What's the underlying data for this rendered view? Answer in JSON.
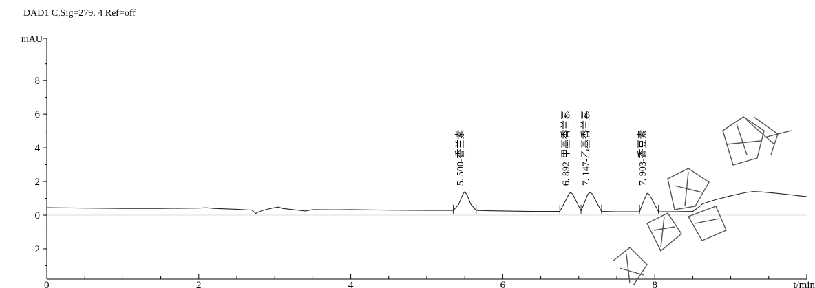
{
  "header": {
    "signal_title": "DAD1 C,Sig=279. 4 Ref=off"
  },
  "chart_data": {
    "type": "line",
    "ylabel": "mAU",
    "xlabel": "t/min",
    "xlim": [
      0,
      10
    ],
    "ylim": [
      -3.8,
      10.5
    ],
    "x_ticks": [
      "0",
      "2",
      "4",
      "6",
      "8",
      "10"
    ],
    "y_ticks": [
      "-2",
      "0",
      "2",
      "4",
      "6",
      "8"
    ],
    "x_tick_values": [
      0,
      2,
      4,
      6,
      8,
      10
    ],
    "y_tick_values": [
      -2,
      0,
      2,
      4,
      6,
      8
    ],
    "grid": false,
    "series": [
      {
        "x": [
          0,
          0.5,
          1.0,
          1.5,
          2.0,
          2.1,
          2.2,
          2.5,
          2.7,
          2.75,
          2.8,
          2.9,
          3.0,
          3.05,
          3.1,
          3.3,
          3.4,
          3.5,
          3.8,
          4.0,
          4.5,
          5.0,
          5.35,
          5.42,
          5.47,
          5.5,
          5.53,
          5.58,
          5.65,
          5.8,
          6.0,
          6.4,
          6.75,
          6.82,
          6.87,
          6.89,
          6.92,
          6.97,
          7.03,
          7.08,
          7.12,
          7.15,
          7.18,
          7.23,
          7.3,
          7.5,
          7.8,
          7.85,
          7.89,
          7.9,
          7.93,
          7.98,
          8.05,
          8.2,
          8.5,
          8.6,
          8.62,
          8.7,
          8.8,
          9.0,
          9.2,
          9.3,
          9.4,
          9.6,
          9.8,
          10.0
        ],
        "y": [
          0.45,
          0.42,
          0.4,
          0.4,
          0.42,
          0.44,
          0.4,
          0.35,
          0.3,
          0.1,
          0.22,
          0.35,
          0.45,
          0.48,
          0.4,
          0.3,
          0.25,
          0.33,
          0.32,
          0.33,
          0.3,
          0.28,
          0.28,
          0.65,
          1.2,
          1.4,
          1.2,
          0.65,
          0.28,
          0.26,
          0.25,
          0.22,
          0.22,
          0.8,
          1.25,
          1.35,
          1.25,
          0.8,
          0.25,
          0.8,
          1.25,
          1.35,
          1.25,
          0.8,
          0.22,
          0.2,
          0.2,
          0.8,
          1.22,
          1.3,
          1.22,
          0.8,
          0.2,
          0.2,
          0.22,
          0.55,
          0.65,
          0.78,
          0.92,
          1.15,
          1.35,
          1.4,
          1.38,
          1.3,
          1.2,
          1.1
        ]
      }
    ],
    "peak_labels": [
      {
        "text": "5. 500-香兰素",
        "x": 5.5
      },
      {
        "text": "6. 892-甲基香兰素",
        "x": 6.89
      },
      {
        "text": "7. 147-乙基香兰素",
        "x": 7.15
      },
      {
        "text": "7. 903-香豆素",
        "x": 7.9
      }
    ],
    "integration_marks": [
      5.35,
      5.65,
      6.75,
      7.03,
      7.3,
      7.8,
      8.05
    ]
  },
  "watermark": {
    "color": "#555555"
  }
}
